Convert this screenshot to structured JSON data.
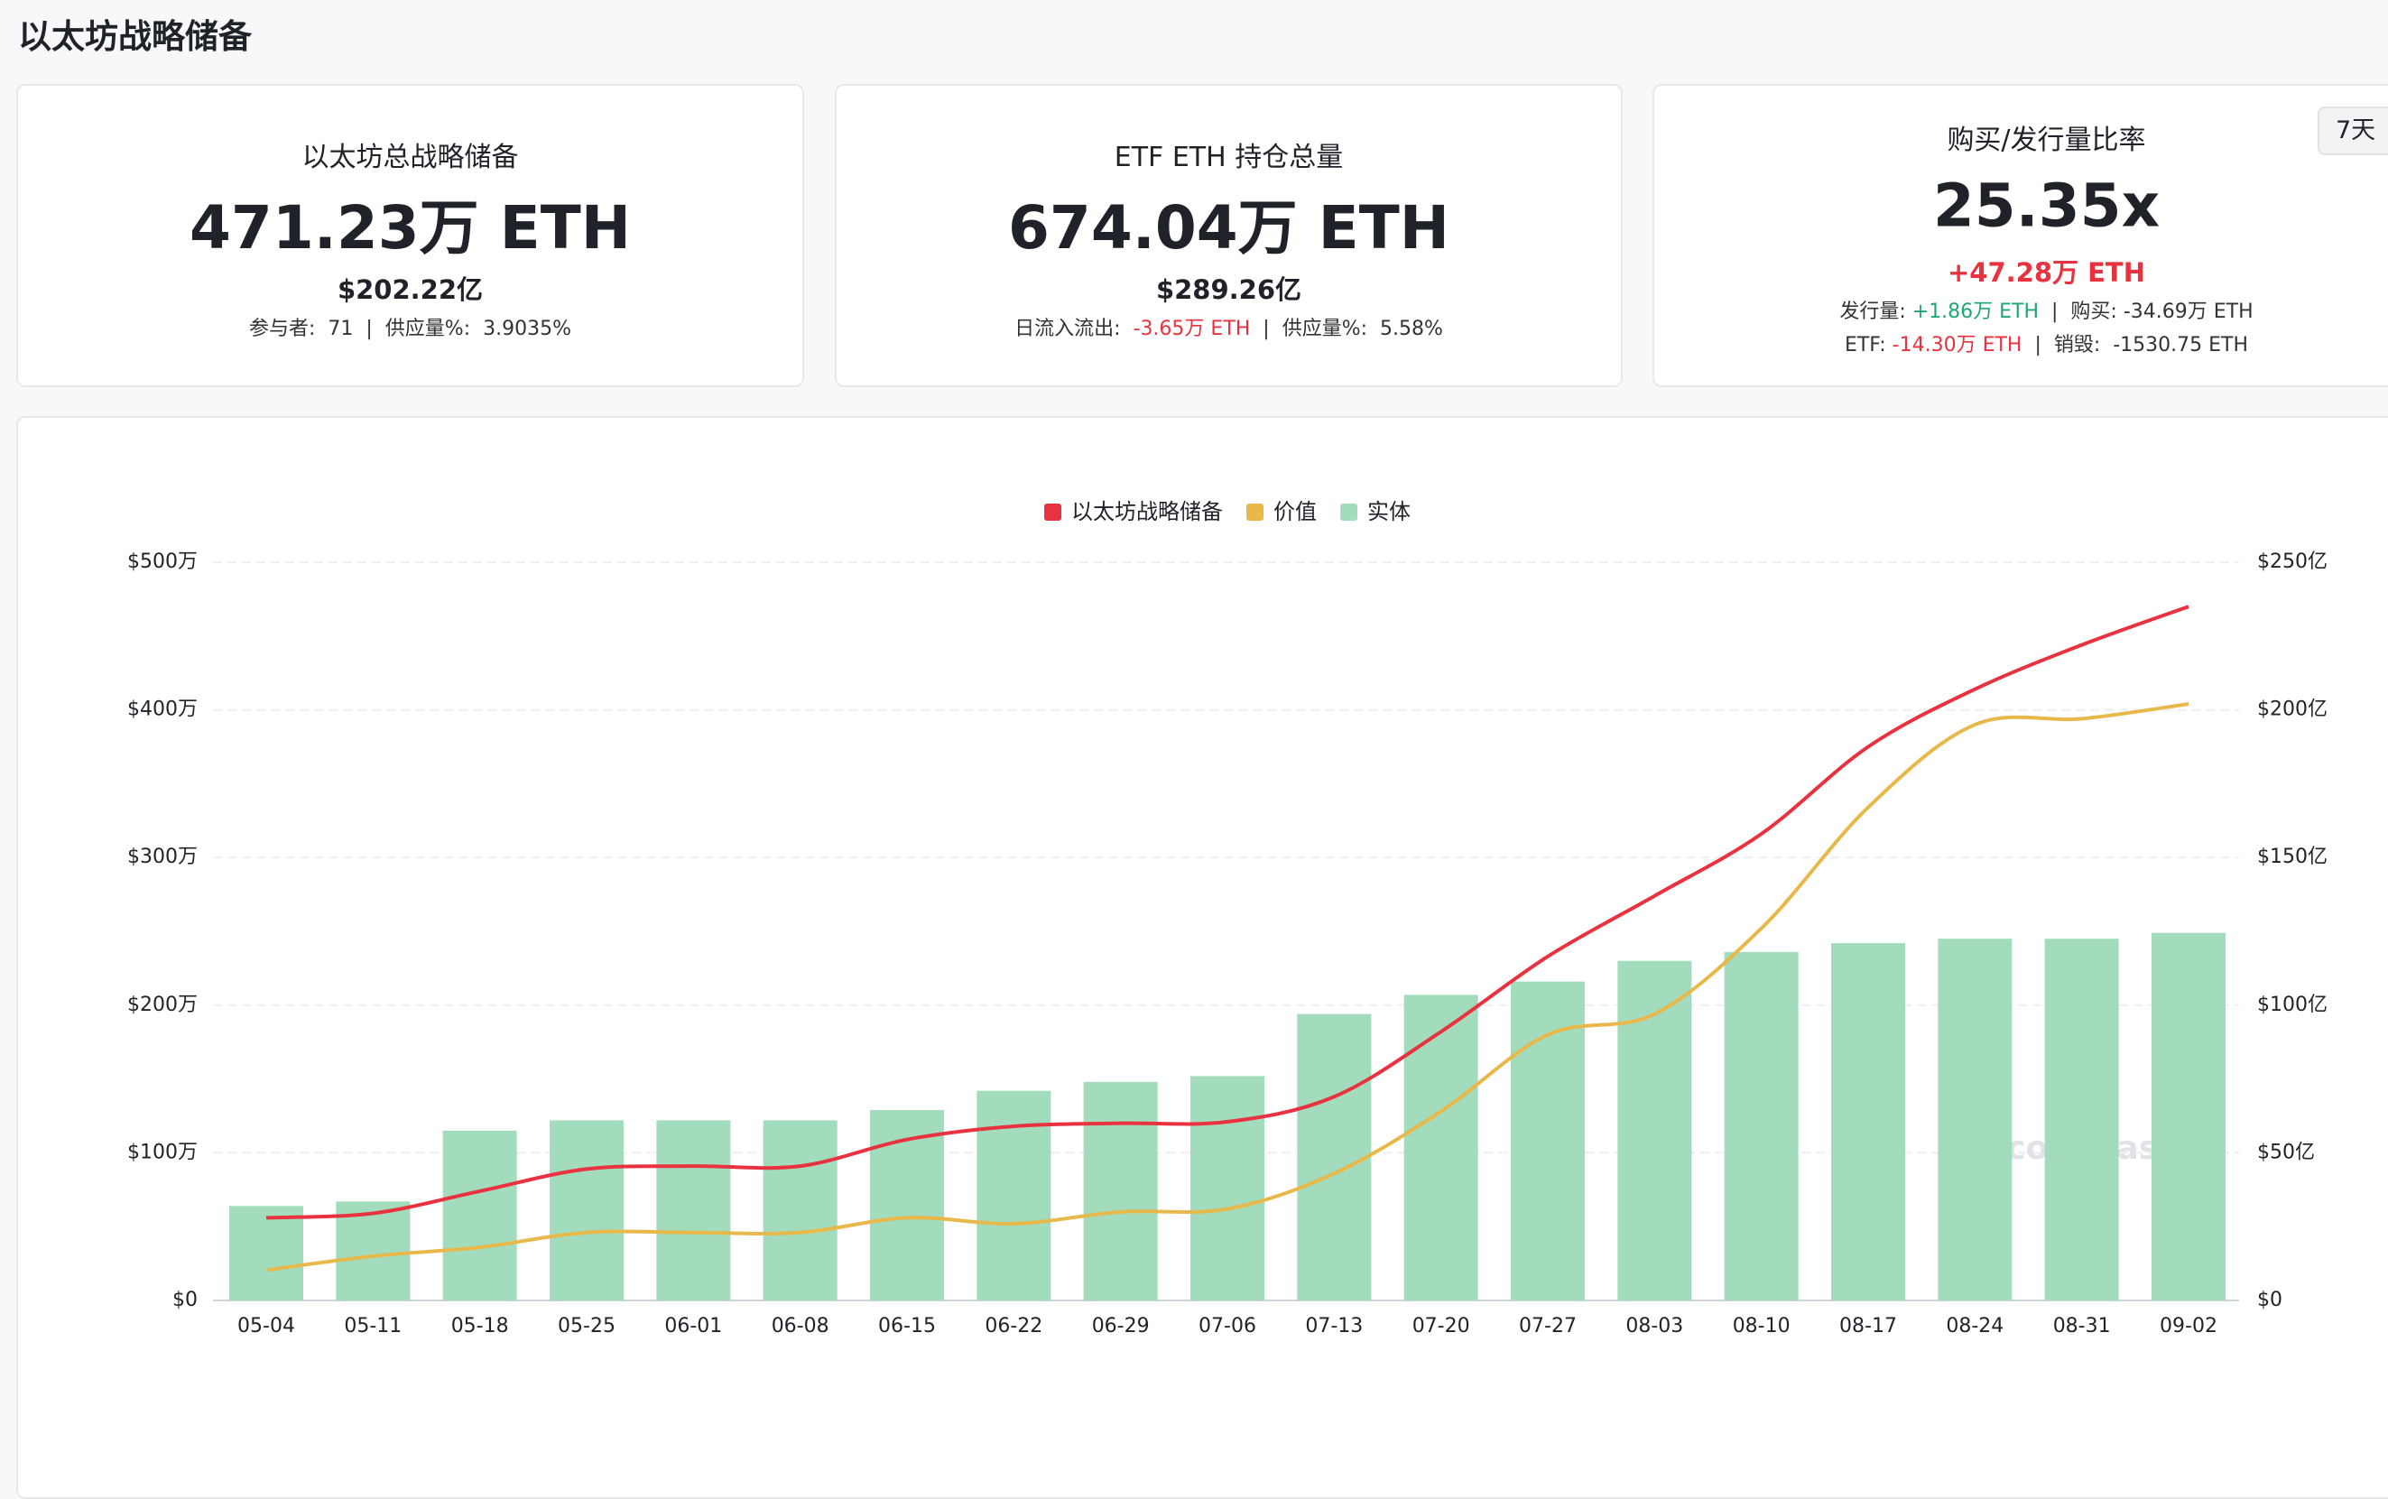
{
  "header": {
    "title": "以太坊战略储备"
  },
  "range_button": "7天",
  "cards": [
    {
      "label": "以太坊总战略储备",
      "value": "471.23万 ETH",
      "sub": "$202.22亿",
      "sub_color": "#1f2329",
      "details": [
        [
          {
            "text": "参与者:  71  |  供应量%:  3.9035%"
          }
        ]
      ]
    },
    {
      "label": "ETF ETH 持仓总量",
      "value": "674.04万 ETH",
      "sub": "$289.26亿",
      "sub_color": "#1f2329",
      "details": [
        [
          {
            "text": "日流入流出:  "
          },
          {
            "text": "-3.65万 ETH",
            "color": "#e8323f"
          },
          {
            "text": "  |  供应量%:  5.58%"
          }
        ]
      ]
    },
    {
      "label": "购买/发行量比率",
      "value": "25.35x",
      "sub": "+47.28万 ETH",
      "sub_color": "#e8323f",
      "details": [
        [
          {
            "text": "发行量: "
          },
          {
            "text": "+1.86万 ETH",
            "color": "#1fa57a"
          },
          {
            "text": "  |  购买: -34.69万 ETH"
          }
        ],
        [
          {
            "text": "ETF: "
          },
          {
            "text": "-14.30万 ETH",
            "color": "#e8323f"
          },
          {
            "text": "  |  销毁:  -1530.75 ETH"
          }
        ]
      ]
    }
  ],
  "watermark": "coinglass",
  "chart_data": {
    "type": "combo",
    "categories": [
      "05-04",
      "05-11",
      "05-18",
      "05-25",
      "06-01",
      "06-08",
      "06-15",
      "06-22",
      "06-29",
      "07-06",
      "07-13",
      "07-20",
      "07-27",
      "08-03",
      "08-10",
      "08-17",
      "08-24",
      "08-31",
      "09-02"
    ],
    "series": [
      {
        "name": "以太坊战略储备",
        "type": "line",
        "color": "#e8323f",
        "values": [
          56,
          59,
          74,
          89,
          91,
          91,
          109,
          118,
          120,
          121,
          138,
          182,
          233,
          274,
          316,
          375,
          414,
          444,
          470
        ]
      },
      {
        "name": "价值",
        "type": "line",
        "axis": "y2",
        "color": "#e8b84a",
        "values": [
          10.3,
          15,
          18,
          23,
          23,
          23,
          28,
          26,
          30,
          31,
          43,
          64,
          90,
          97,
          126,
          167,
          195,
          197,
          202
        ]
      },
      {
        "name": "实体",
        "type": "bar",
        "color": "#a3dbbd",
        "values": [
          64,
          67,
          115,
          122,
          122,
          122,
          129,
          142,
          148,
          152,
          194,
          207,
          216,
          230,
          236,
          242,
          245,
          245,
          249
        ]
      }
    ],
    "ylim": [
      0,
      500
    ],
    "yticks": [
      {
        "value": 0,
        "label": "$0"
      },
      {
        "value": 100,
        "label": "$100万"
      },
      {
        "value": 200,
        "label": "$200万"
      },
      {
        "value": 300,
        "label": "$300万"
      },
      {
        "value": 400,
        "label": "$400万"
      },
      {
        "value": 500,
        "label": "$500万"
      }
    ],
    "y2lim": [
      0,
      250
    ],
    "y2ticks": [
      {
        "value": 0,
        "label": "$0"
      },
      {
        "value": 50,
        "label": "$50亿"
      },
      {
        "value": 100,
        "label": "$100亿"
      },
      {
        "value": 150,
        "label": "$150亿"
      },
      {
        "value": 200,
        "label": "$200亿"
      },
      {
        "value": 250,
        "label": "$250亿"
      }
    ],
    "grid": true
  }
}
